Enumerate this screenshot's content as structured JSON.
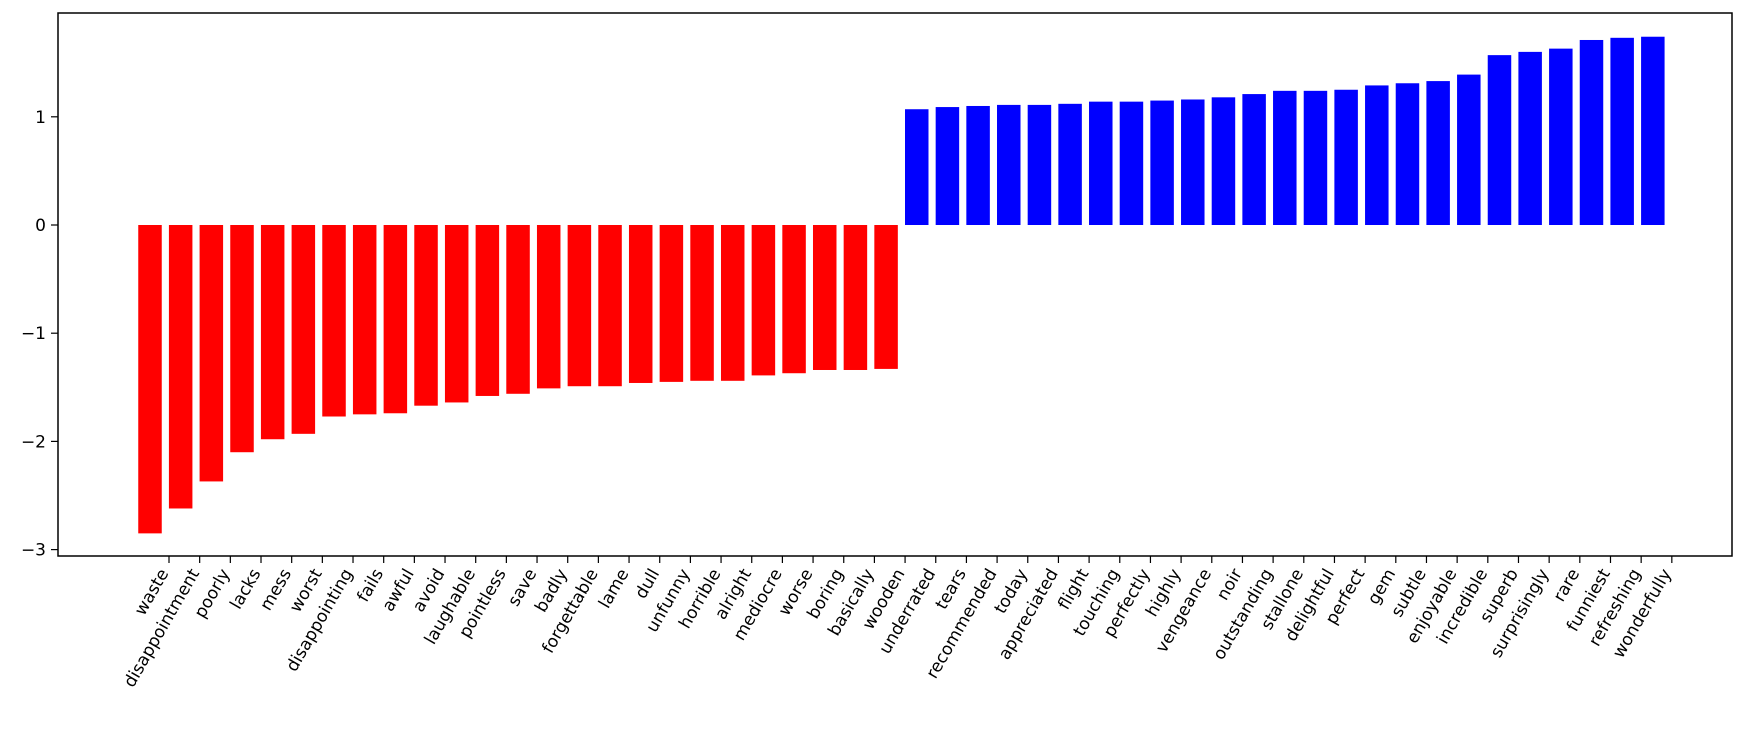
{
  "chart_data": {
    "type": "bar",
    "title": "",
    "xlabel": "",
    "ylabel": "",
    "ylim": [
      -3.1,
      1.95
    ],
    "yticks": [
      -3,
      -2,
      -1,
      0,
      1
    ],
    "ytick_labels": [
      "−3",
      "−2",
      "−1",
      "0",
      "1"
    ],
    "grid": false,
    "legend": "none",
    "colors": {
      "negative": "#ff0000",
      "positive": "#0000ff"
    },
    "categories": [
      "waste",
      "disappointment",
      "poorly",
      "lacks",
      "mess",
      "worst",
      "disappointing",
      "fails",
      "awful",
      "avoid",
      "laughable",
      "pointless",
      "save",
      "badly",
      "forgettable",
      "lame",
      "dull",
      "unfunny",
      "horrible",
      "alright",
      "mediocre",
      "worse",
      "boring",
      "basically",
      "wooden",
      "underrated",
      "tears",
      "recommended",
      "today",
      "appreciated",
      "flight",
      "touching",
      "perfectly",
      "highly",
      "vengeance",
      "noir",
      "outstanding",
      "stallone",
      "delightful",
      "perfect",
      "gem",
      "subtle",
      "enjoyable",
      "incredible",
      "superb",
      "surprisingly",
      "rare",
      "funniest",
      "refreshing",
      "wonderfully"
    ],
    "values": [
      -2.85,
      -2.62,
      -2.37,
      -2.1,
      -1.98,
      -1.93,
      -1.77,
      -1.75,
      -1.74,
      -1.67,
      -1.64,
      -1.58,
      -1.56,
      -1.51,
      -1.49,
      -1.49,
      -1.46,
      -1.45,
      -1.44,
      -1.44,
      -1.39,
      -1.37,
      -1.34,
      -1.34,
      -1.33,
      1.07,
      1.09,
      1.1,
      1.11,
      1.11,
      1.12,
      1.14,
      1.14,
      1.15,
      1.16,
      1.18,
      1.21,
      1.24,
      1.24,
      1.25,
      1.29,
      1.31,
      1.33,
      1.39,
      1.57,
      1.6,
      1.63,
      1.71,
      1.73,
      1.74
    ]
  }
}
